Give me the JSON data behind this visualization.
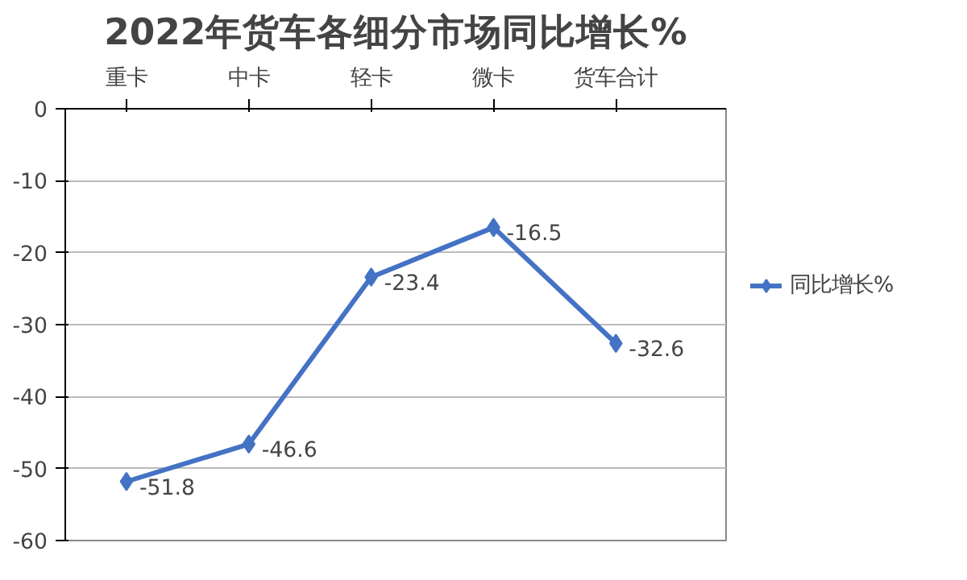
{
  "chart_data": {
    "type": "line",
    "title": "2022年货车各细分市场同比增长%",
    "categories": [
      "重卡",
      "中卡",
      "轻卡",
      "微卡",
      "货车合计"
    ],
    "series": [
      {
        "name": "同比增长%",
        "color": "#4472c4",
        "values": [
          -51.8,
          -46.6,
          -23.4,
          -16.5,
          -32.6
        ]
      }
    ],
    "ylim": [
      -60,
      0
    ],
    "yticks": [
      -60,
      -50,
      -40,
      -30,
      -20,
      -10,
      0
    ],
    "grid": "y",
    "legend": "right",
    "marker": "diamond",
    "line_style": "solid",
    "data_labels": true
  }
}
